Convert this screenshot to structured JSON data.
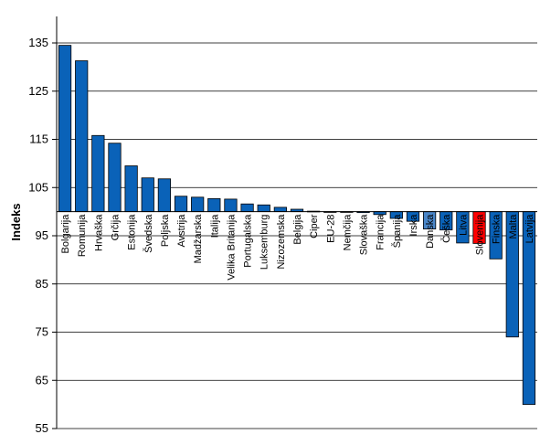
{
  "chart_data": {
    "type": "bar",
    "ylabel": "Indeks",
    "xlabel": "",
    "ylim": [
      55,
      140
    ],
    "yticks": [
      55,
      65,
      75,
      85,
      95,
      105,
      115,
      125,
      135
    ],
    "baseline": 100,
    "grid": true,
    "categories": [
      "Bolgarija",
      "Romunija",
      "Hrvaška",
      "Grčija",
      "Estonija",
      "Švedska",
      "Poljska",
      "Avstrija",
      "Madžarska",
      "Italija",
      "Velika Britanija",
      "Portugalska",
      "Luksemburg",
      "Nizozemska",
      "Belgija",
      "Ciper",
      "EU-28",
      "Nemčija",
      "Slovaška",
      "Francija",
      "Španija",
      "Irska",
      "Danska",
      "Češka",
      "Litva",
      "Slovenija",
      "Finska",
      "Malta",
      "Latvija"
    ],
    "values": [
      134.5,
      131.3,
      115.8,
      114.2,
      109.5,
      107.0,
      106.8,
      103.2,
      103.0,
      102.7,
      102.6,
      101.6,
      101.4,
      100.9,
      100.5,
      100.1,
      100.0,
      99.9,
      99.8,
      99.4,
      98.6,
      98.0,
      96.4,
      96.2,
      93.5,
      93.4,
      90.2,
      74.0,
      60.0
    ],
    "colors": {
      "default": "#0a62b8",
      "highlight": "#ff0000",
      "highlight_category": "Slovenija",
      "light": "#4a86c8",
      "light_categories": [
        "Danska"
      ]
    }
  }
}
